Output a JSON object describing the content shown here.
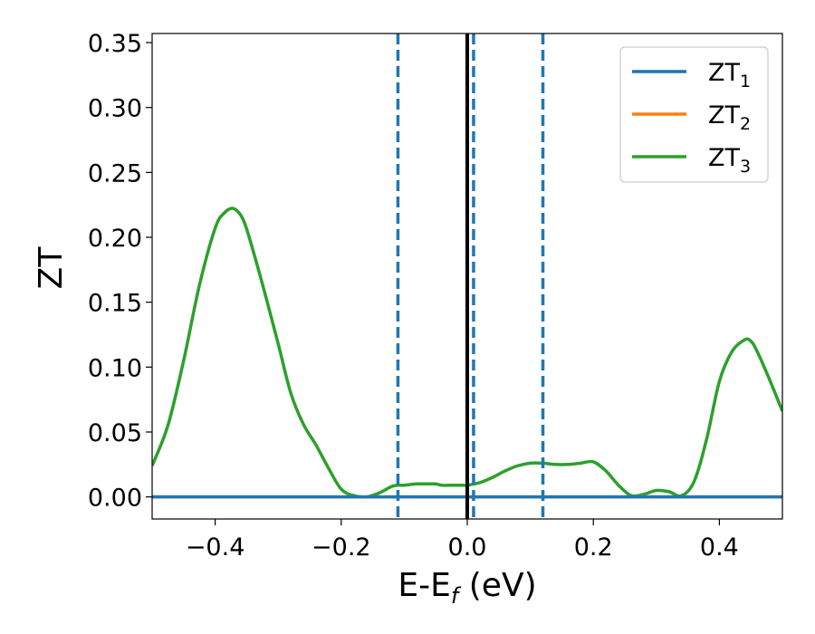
{
  "chart_data": {
    "type": "line",
    "xlabel": {
      "base": "E-E",
      "sub": "f",
      "unit": " (eV)"
    },
    "ylabel": "ZT",
    "xlim": [
      -0.5,
      0.5
    ],
    "ylim": [
      -0.017,
      0.357
    ],
    "xticks": [
      -0.4,
      -0.2,
      0.0,
      0.2,
      0.4
    ],
    "xtick_labels": [
      "−0.4",
      "−0.2",
      "0.0",
      "0.2",
      "0.4"
    ],
    "yticks": [
      0.0,
      0.05,
      0.1,
      0.15,
      0.2,
      0.25,
      0.3,
      0.35
    ],
    "ytick_labels": [
      "0.00",
      "0.05",
      "0.10",
      "0.15",
      "0.20",
      "0.25",
      "0.30",
      "0.35"
    ],
    "grid": false,
    "legend_position": "top-right",
    "series": [
      {
        "name": "ZT",
        "sub": "1",
        "color": "#1f77b4",
        "x": [
          -0.5,
          0.5
        ],
        "y": [
          0.0,
          0.0
        ]
      },
      {
        "name": "ZT",
        "sub": "2",
        "color": "#ff7f0e",
        "x": [
          -0.5,
          0.5
        ],
        "y": [
          0.0,
          0.0
        ]
      },
      {
        "name": "ZT",
        "sub": "3",
        "color": "#2ca02c",
        "x": [
          -0.5,
          -0.475,
          -0.45,
          -0.425,
          -0.4,
          -0.385,
          -0.37,
          -0.355,
          -0.34,
          -0.32,
          -0.3,
          -0.28,
          -0.26,
          -0.24,
          -0.22,
          -0.2,
          -0.18,
          -0.16,
          -0.14,
          -0.12,
          -0.11,
          -0.1,
          -0.08,
          -0.06,
          -0.05,
          -0.04,
          -0.02,
          -0.005,
          0.0,
          0.02,
          0.04,
          0.06,
          0.08,
          0.1,
          0.12,
          0.14,
          0.16,
          0.18,
          0.2,
          0.22,
          0.24,
          0.26,
          0.28,
          0.3,
          0.32,
          0.34,
          0.36,
          0.38,
          0.4,
          0.42,
          0.44,
          0.45,
          0.46,
          0.48,
          0.5
        ],
        "y": [
          0.024,
          0.055,
          0.105,
          0.163,
          0.207,
          0.219,
          0.222,
          0.213,
          0.19,
          0.155,
          0.118,
          0.08,
          0.056,
          0.04,
          0.022,
          0.006,
          0.001,
          0.0,
          0.003,
          0.008,
          0.009,
          0.009,
          0.01,
          0.01,
          0.01,
          0.009,
          0.009,
          0.009,
          0.009,
          0.011,
          0.015,
          0.02,
          0.024,
          0.026,
          0.026,
          0.025,
          0.025,
          0.026,
          0.027,
          0.02,
          0.009,
          0.001,
          0.002,
          0.005,
          0.004,
          0.001,
          0.012,
          0.045,
          0.089,
          0.112,
          0.121,
          0.12,
          0.112,
          0.09,
          0.066
        ]
      }
    ],
    "vertical_lines": [
      {
        "x": -0.11,
        "style": "dashed",
        "color": "#1f77b4"
      },
      {
        "x": 0.0,
        "style": "solid",
        "color": "#000000"
      },
      {
        "x": 0.01,
        "style": "dashed",
        "color": "#1f77b4"
      },
      {
        "x": 0.12,
        "style": "dashed",
        "color": "#1f77b4"
      }
    ]
  }
}
